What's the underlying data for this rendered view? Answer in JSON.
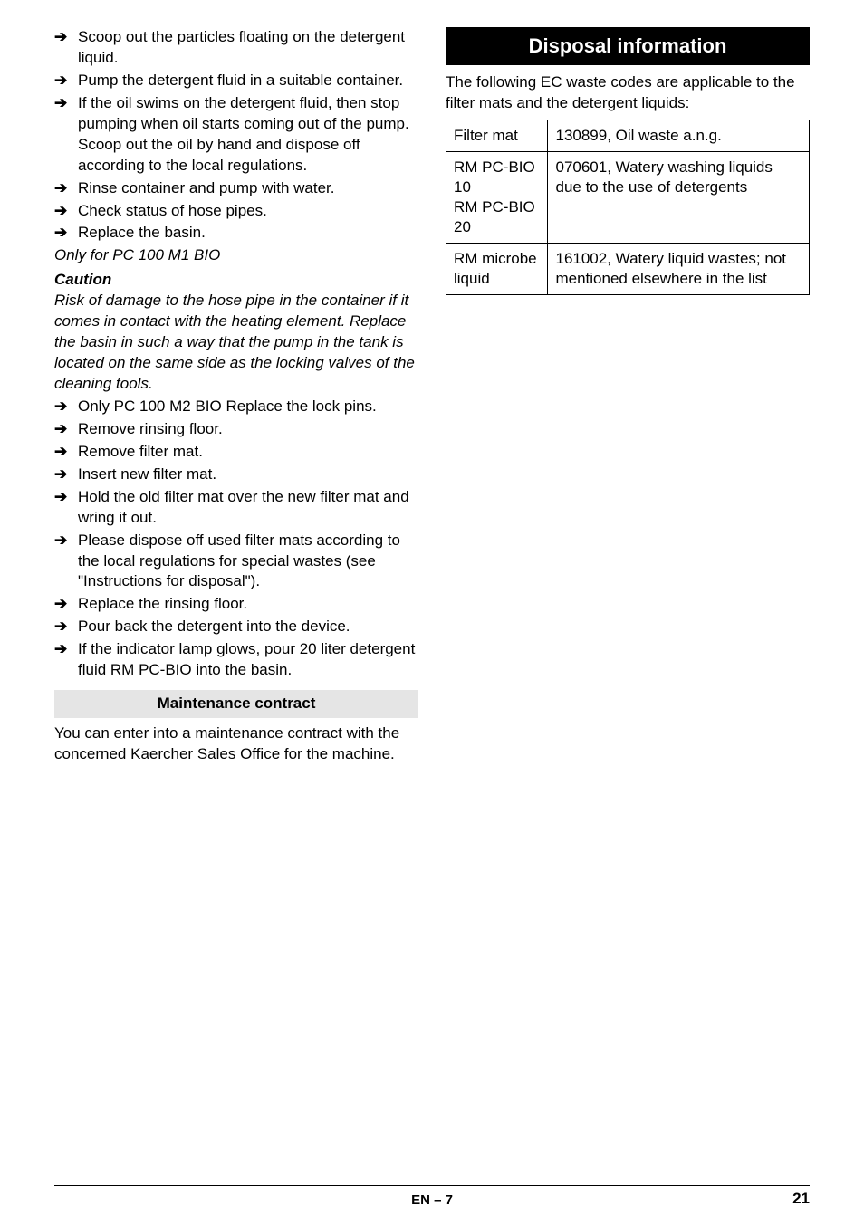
{
  "left": {
    "bullets1": [
      "Scoop out the particles floating on the detergent liquid.",
      "Pump the detergent fluid in a suitable container.",
      "If the oil swims on the detergent fluid, then stop pumping when oil starts coming out of the pump.  Scoop out the oil by hand and dispose off according to the local regulations.",
      "Rinse container and pump with water.",
      "Check status of hose pipes.",
      "Replace the basin."
    ],
    "only_for": "Only for PC 100 M1 BIO",
    "caution_label": "Caution",
    "caution_text": "Risk of damage to the hose pipe in the container if it comes in contact with the heating element.  Replace the basin in such a way that the pump in the tank is located on the same side as the locking valves of the cleaning tools.",
    "bullets2": [
      "Only PC 100 M2 BIO Replace the lock pins.",
      "Remove rinsing floor.",
      "Remove filter mat.",
      "Insert new filter mat.",
      "Hold the old filter mat over the new filter mat and wring it out.",
      "Please dispose off used filter mats according to the local regulations for special wastes (see \"Instructions for disposal\").",
      "Replace the rinsing floor.",
      "Pour back the detergent into the device.",
      "If the indicator lamp glows, pour 20 liter detergent fluid RM PC-BIO into the basin."
    ],
    "maintenance_heading": "Maintenance contract",
    "maintenance_text": "You can enter into a maintenance contract with the concerned Kaercher Sales Office for the machine."
  },
  "right": {
    "heading": "Disposal information",
    "intro": "The following EC waste codes are applicable to the filter mats and the detergent liquids:",
    "table": {
      "rows": [
        {
          "c1": "Filter mat",
          "c2": "130899, Oil waste a.n.g."
        },
        {
          "c1": "RM PC-BIO 10\nRM PC-BIO 20",
          "c2": "070601, Watery washing liquids due to the use of detergents"
        },
        {
          "c1": "RM microbe liquid",
          "c2": "161002, Watery liquid wastes; not mentioned elsewhere in the list"
        }
      ]
    }
  },
  "footer": {
    "center": "EN – 7",
    "page_number": "21"
  },
  "style": {
    "arrow_glyph": "➔"
  }
}
